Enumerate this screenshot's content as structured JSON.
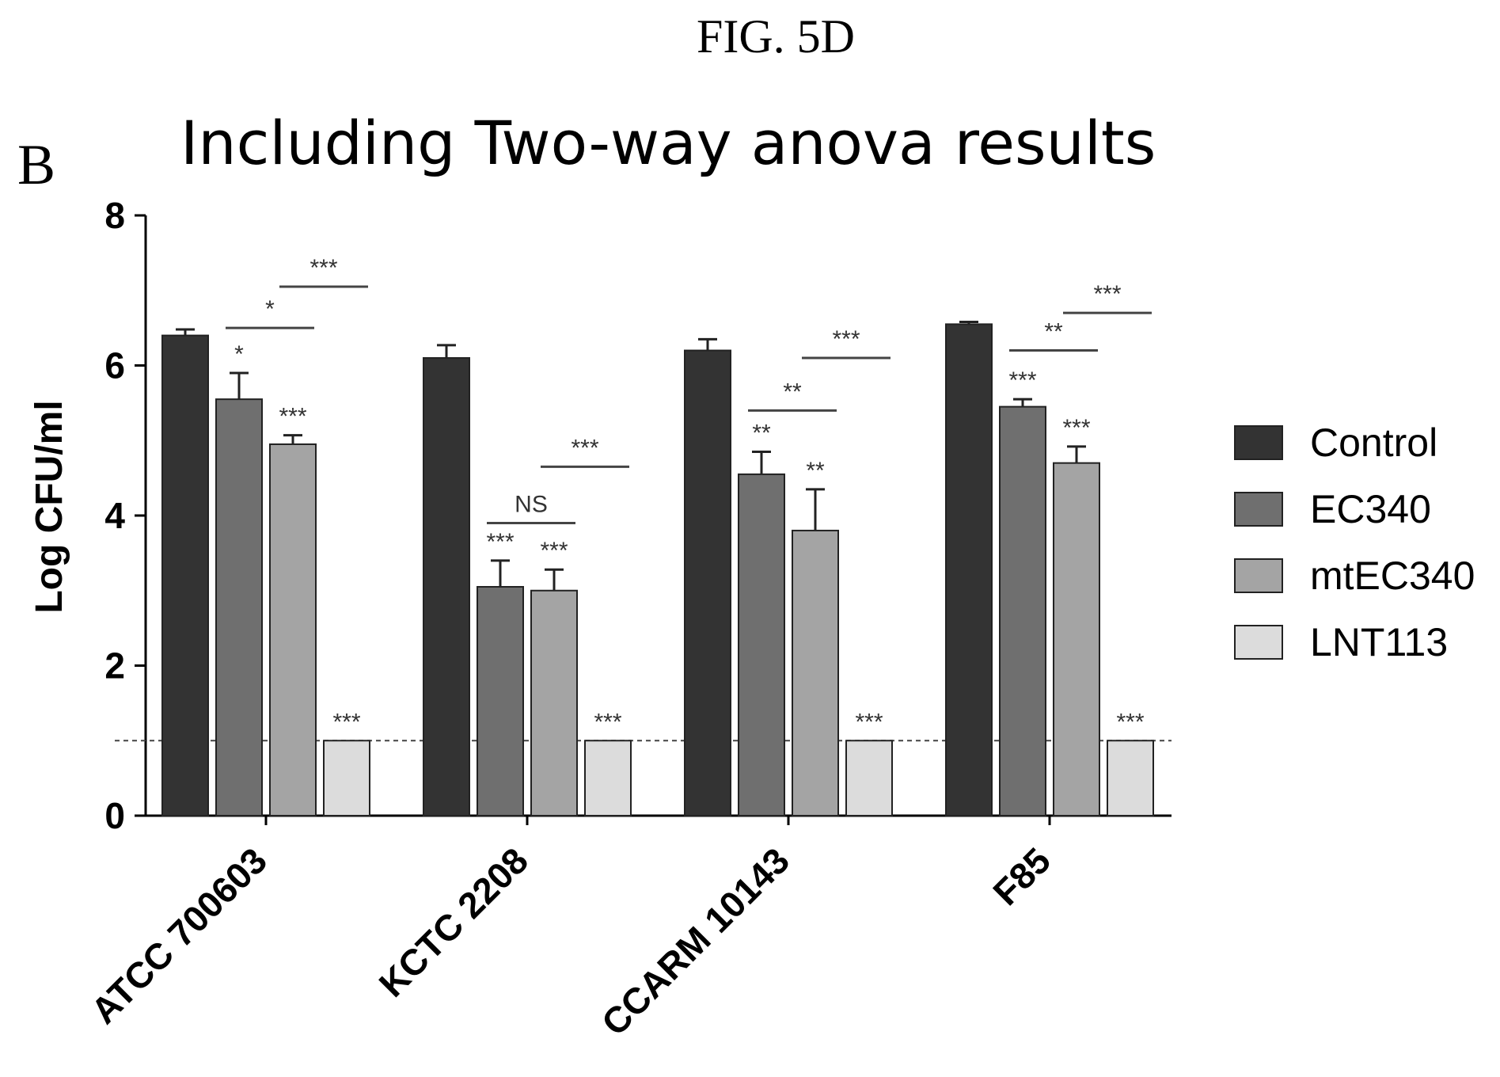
{
  "figure_label": "FIG. 5D",
  "chart_data": {
    "type": "bar",
    "panel": "B",
    "title": "Including Two-way anova results",
    "xlabel": "",
    "ylabel": "Log CFU/ml",
    "ylim": [
      0,
      8
    ],
    "yticks": [
      0,
      2,
      4,
      6,
      8
    ],
    "reference_line": 1,
    "categories": [
      "ATCC 700603",
      "KCTC 2208",
      "CCARM 10143",
      "F85"
    ],
    "series": [
      {
        "name": "Control",
        "color": "#333333",
        "values": [
          6.4,
          6.1,
          6.2,
          6.55
        ],
        "errors": [
          0.08,
          0.17,
          0.15,
          0.03
        ],
        "sig": [
          "",
          "",
          "",
          ""
        ]
      },
      {
        "name": "EC340",
        "color": "#6f6f6f",
        "values": [
          5.55,
          3.05,
          4.55,
          5.45
        ],
        "errors": [
          0.35,
          0.35,
          0.3,
          0.1
        ],
        "sig": [
          "*",
          "***",
          "**",
          "***"
        ]
      },
      {
        "name": "mtEC340",
        "color": "#a4a4a4",
        "values": [
          4.95,
          3.0,
          3.8,
          4.7
        ],
        "errors": [
          0.12,
          0.28,
          0.55,
          0.22
        ],
        "sig": [
          "***",
          "***",
          "**",
          "***"
        ]
      },
      {
        "name": "LNT113",
        "color": "#dcdcdc",
        "values": [
          1.0,
          1.0,
          1.0,
          1.0
        ],
        "errors": [
          0,
          0,
          0,
          0
        ],
        "sig": [
          "***",
          "***",
          "***",
          "***"
        ]
      }
    ],
    "comparisons": [
      {
        "category": 0,
        "from": 1,
        "to": 2,
        "y": 6.5,
        "label": "*"
      },
      {
        "category": 0,
        "from": 2,
        "to": 3,
        "y": 7.05,
        "label": "***"
      },
      {
        "category": 1,
        "from": 1,
        "to": 2,
        "y": 3.9,
        "label": "NS"
      },
      {
        "category": 1,
        "from": 2,
        "to": 3,
        "y": 4.65,
        "label": "***"
      },
      {
        "category": 2,
        "from": 1,
        "to": 2,
        "y": 5.4,
        "label": "**"
      },
      {
        "category": 2,
        "from": 2,
        "to": 3,
        "y": 6.1,
        "label": "***"
      },
      {
        "category": 3,
        "from": 1,
        "to": 2,
        "y": 6.2,
        "label": "**"
      },
      {
        "category": 3,
        "from": 2,
        "to": 3,
        "y": 6.7,
        "label": "***"
      }
    ],
    "legend_position": "right"
  }
}
